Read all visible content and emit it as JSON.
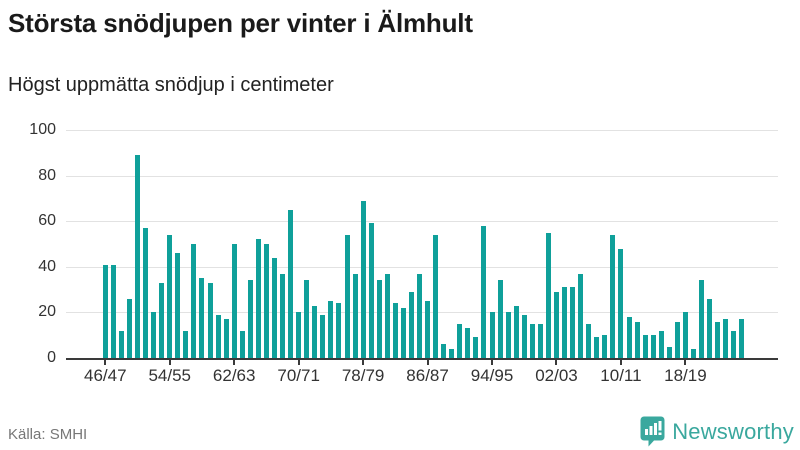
{
  "header": {
    "title": "Största snödjupen per vinter i Älmhult",
    "subtitle": "Högst uppmätta snödjup i centimeter"
  },
  "footer": {
    "source": "Källa: SMHI",
    "brand_name": "Newsworthy"
  },
  "colors": {
    "bar": "#0fa09a",
    "brand_teal": "#3aa89e",
    "gridline": "#e2e2e2",
    "axis": "#3a3a3a",
    "title_text": "#1a1a1a",
    "muted_text": "#777777"
  },
  "chart_data": {
    "type": "bar",
    "title": "Största snödjupen per vinter i Älmhult",
    "subtitle": "Högst uppmätta snödjup i centimeter",
    "unit": "centimeter",
    "ylim": [
      0,
      100
    ],
    "yticks": [
      0,
      20,
      40,
      60,
      80,
      100
    ],
    "grid": "horizontal",
    "legend": "none",
    "x_tick_labels": [
      "46/47",
      "54/55",
      "62/63",
      "70/71",
      "78/79",
      "86/87",
      "94/95",
      "02/03",
      "10/11",
      "18/19"
    ],
    "categories": [
      "46/47",
      "47/48",
      "48/49",
      "49/50",
      "50/51",
      "51/52",
      "52/53",
      "53/54",
      "54/55",
      "55/56",
      "56/57",
      "57/58",
      "58/59",
      "59/60",
      "60/61",
      "61/62",
      "62/63",
      "63/64",
      "64/65",
      "65/66",
      "66/67",
      "67/68",
      "68/69",
      "69/70",
      "70/71",
      "71/72",
      "72/73",
      "73/74",
      "74/75",
      "75/76",
      "76/77",
      "77/78",
      "78/79",
      "79/80",
      "80/81",
      "81/82",
      "82/83",
      "83/84",
      "84/85",
      "85/86",
      "86/87",
      "87/88",
      "88/89",
      "89/90",
      "90/91",
      "91/92",
      "92/93",
      "93/94",
      "94/95",
      "95/96",
      "96/97",
      "97/98",
      "98/99",
      "99/00",
      "00/01",
      "01/02",
      "02/03",
      "03/04",
      "04/05",
      "05/06",
      "06/07",
      "07/08",
      "08/09",
      "09/10",
      "10/11",
      "11/12",
      "12/13",
      "13/14",
      "14/15",
      "15/16",
      "16/17",
      "17/18",
      "18/19",
      "19/20",
      "20/21",
      "21/22",
      "22/23",
      "23/24",
      "24/25",
      "25/26"
    ],
    "values": [
      41,
      41,
      12,
      26,
      89,
      57,
      20,
      33,
      54,
      46,
      12,
      50,
      35,
      33,
      19,
      17,
      50,
      12,
      34,
      52,
      50,
      44,
      37,
      65,
      20,
      34,
      23,
      19,
      25,
      24,
      54,
      37,
      69,
      59,
      34,
      37,
      24,
      22,
      29,
      37,
      25,
      54,
      6,
      4,
      15,
      13,
      9,
      58,
      20,
      34,
      20,
      23,
      19,
      15,
      15,
      55,
      29,
      31,
      31,
      37,
      15,
      9,
      10,
      54,
      48,
      18,
      16,
      10,
      10,
      12,
      5,
      16,
      20,
      4,
      34,
      26,
      16,
      17,
      12,
      17
    ]
  }
}
